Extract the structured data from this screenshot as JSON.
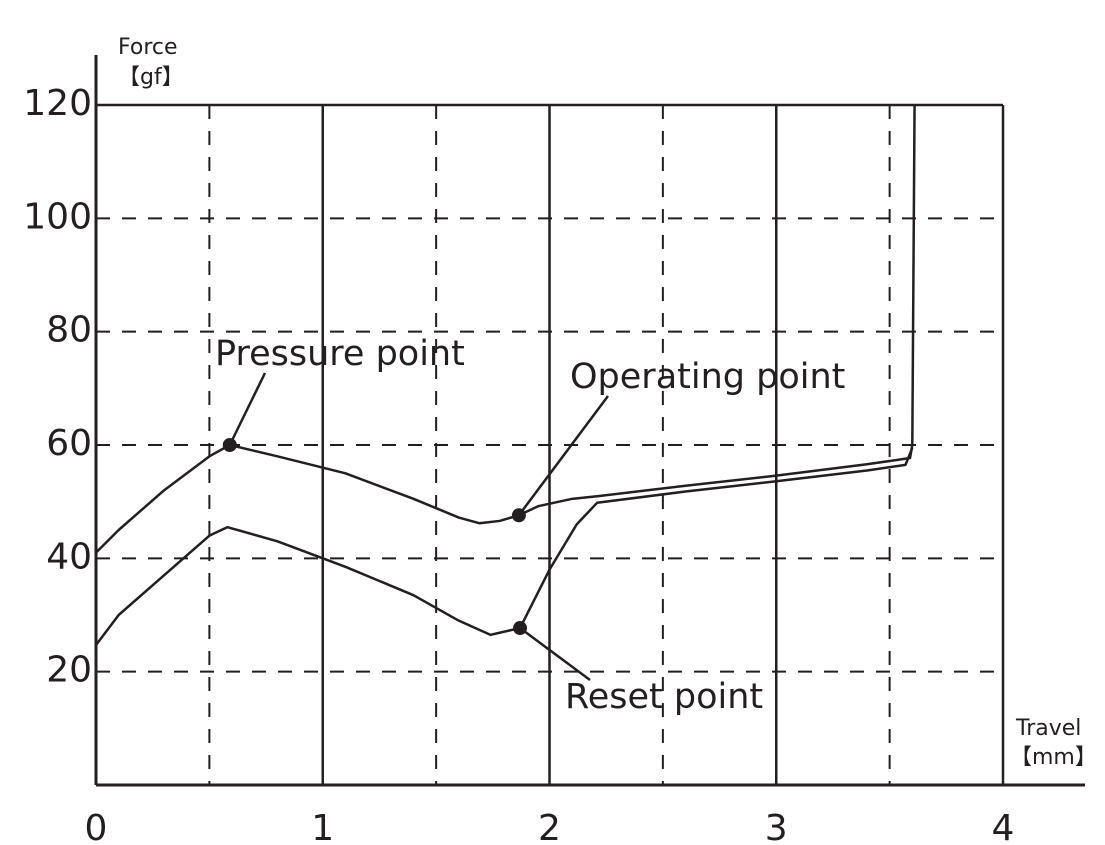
{
  "chart_data": {
    "type": "line",
    "ylabel": [
      "Force",
      "【gf】"
    ],
    "xlabel": [
      "Travel",
      "【mm】"
    ],
    "xlim": [
      0,
      4
    ],
    "xticks": [
      0,
      1,
      2,
      3,
      4
    ],
    "xminor": [
      0.5,
      1.5,
      2.5,
      3.5
    ],
    "ylim": [
      0,
      120
    ],
    "yticks": [
      20,
      40,
      60,
      80,
      100,
      120
    ],
    "grid": true,
    "series": [
      {
        "color": "#231f20",
        "x": [
          0,
          0.1,
          0.3,
          0.5,
          0.59,
          0.8,
          1.1,
          1.4,
          1.6,
          1.69,
          1.78,
          1.865,
          1.95,
          2.1,
          2.22,
          2.6,
          3.0,
          3.4,
          3.59,
          3.6,
          3.61
        ],
        "values": [
          41,
          45,
          52,
          58,
          60,
          58,
          55,
          50.5,
          47.2,
          46.2,
          46.6,
          47.6,
          49.2,
          50.5,
          51,
          52.8,
          54.6,
          56.6,
          57.7,
          60,
          120
        ]
      },
      {
        "color": "#231f20",
        "x": [
          0,
          0.1,
          0.3,
          0.5,
          0.58,
          0.8,
          1.1,
          1.4,
          1.6,
          1.74,
          1.87,
          2.0,
          2.12,
          2.21,
          2.6,
          3.0,
          3.4,
          3.57,
          3.6
        ],
        "values": [
          24.7,
          30,
          37,
          44,
          45.5,
          43,
          38.5,
          33.5,
          29,
          26.5,
          27.7,
          38,
          46,
          49.8,
          51.8,
          53.6,
          55.5,
          56.5,
          59.5
        ]
      }
    ],
    "annotations": [
      {
        "text": "Pressure point",
        "x": 0.59,
        "y": 60
      },
      {
        "text": "Operating point",
        "x": 1.865,
        "y": 47.6
      },
      {
        "text": "Reset point",
        "x": 1.87,
        "y": 27.7
      }
    ]
  }
}
